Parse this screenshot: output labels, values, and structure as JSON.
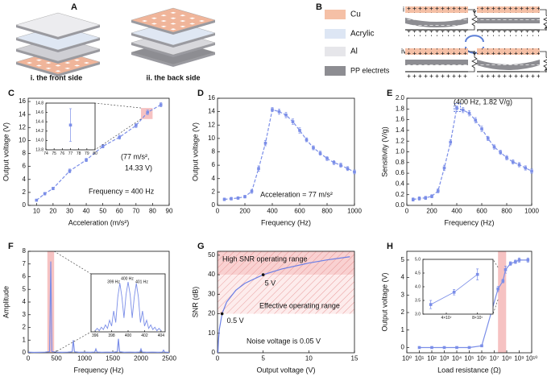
{
  "figure": {
    "panel_a": {
      "label": "A",
      "captions": [
        "i. the front side",
        "ii. the back side"
      ]
    },
    "panel_b": {
      "label": "B",
      "legend": [
        "Cu",
        "Acrylic",
        "Al",
        "PP electrets"
      ],
      "states": [
        "i",
        "ii",
        "iii",
        "iv"
      ]
    }
  },
  "chart_data": [
    {
      "panel": "C",
      "type": "line",
      "xlabel": "Acceleration (m/s²)",
      "ylabel": "Output voltage (V)",
      "x": [
        10,
        15,
        20,
        30,
        40,
        50,
        60,
        70,
        77,
        85
      ],
      "values": [
        0.8,
        1.8,
        2.6,
        5.3,
        7.0,
        9.1,
        10.5,
        12.3,
        14.33,
        15.5
      ],
      "errors": [
        0.15,
        0.2,
        0.2,
        0.3,
        0.25,
        0.25,
        0.3,
        0.3,
        0.35,
        0.3
      ],
      "color": "#7b8ee8",
      "line_style": "dashed",
      "markers": "square",
      "xlim": [
        5,
        90
      ],
      "ylim": [
        0,
        16.5
      ],
      "xticks": [
        10,
        20,
        30,
        40,
        50,
        60,
        70,
        80,
        90
      ],
      "yticks": [
        0,
        2,
        4,
        6,
        8,
        10,
        12,
        14,
        16
      ],
      "annotations": [
        "(77 m/s²,",
        "14.33 V)",
        "Frequency = 400 Hz"
      ],
      "highlights": [
        {
          "x": [
            73,
            80
          ],
          "y": [
            13.3,
            15.0
          ],
          "color": "#f4b3b3"
        }
      ]
    },
    {
      "type": "line",
      "x": [
        77
      ],
      "values": [
        14.33
      ],
      "errors": [
        0.35
      ],
      "color": "#7b8ee8",
      "line_style": "dashed",
      "markers": "square",
      "xlim": [
        74,
        80
      ],
      "ylim": [
        13.8,
        14.8
      ],
      "xticks": [
        74,
        75,
        76,
        77,
        78,
        79,
        80
      ],
      "yticks": [
        13.8,
        {
          "value": 14,
          "label": "14.0"
        },
        14.2,
        14.4,
        14.6,
        14.8
      ]
    },
    {
      "panel": "D",
      "type": "line",
      "xlabel": "Frequency (Hz)",
      "ylabel": "Output voltage (V)",
      "x": [
        50,
        100,
        150,
        200,
        250,
        300,
        350,
        400,
        450,
        500,
        550,
        600,
        650,
        700,
        750,
        800,
        850,
        900,
        950,
        1000
      ],
      "values": [
        0.9,
        1.0,
        1.1,
        1.3,
        2.1,
        5.5,
        9.3,
        14.3,
        14.0,
        13.5,
        12.5,
        11.2,
        9.8,
        8.6,
        7.8,
        7.0,
        6.4,
        6.0,
        5.5,
        5.0
      ],
      "errors": [
        0.2,
        0.2,
        0.2,
        0.2,
        0.3,
        0.4,
        0.4,
        0.3,
        0.4,
        0.4,
        0.4,
        0.4,
        0.3,
        0.3,
        0.3,
        0.3,
        0.3,
        0.3,
        0.3,
        0.3
      ],
      "color": "#7b8ee8",
      "line_style": "dashed",
      "markers": "square",
      "xlim": [
        0,
        1000
      ],
      "ylim": [
        0,
        16
      ],
      "xticks": [
        0,
        200,
        400,
        600,
        800,
        1000
      ],
      "yticks": [
        0,
        2,
        4,
        6,
        8,
        10,
        12,
        14,
        16
      ],
      "annotations": [
        "Acceleration = 77 m/s²"
      ]
    },
    {
      "panel": "E",
      "type": "line",
      "xlabel": "Frequency (Hz)",
      "ylabel": "Sensitivity (V/g)",
      "x": [
        50,
        100,
        150,
        200,
        250,
        300,
        350,
        400,
        450,
        500,
        550,
        600,
        650,
        700,
        750,
        800,
        850,
        900,
        950,
        1000
      ],
      "values": [
        0.11,
        0.13,
        0.14,
        0.17,
        0.27,
        0.7,
        1.18,
        1.82,
        1.78,
        1.72,
        1.59,
        1.43,
        1.25,
        1.09,
        0.99,
        0.89,
        0.81,
        0.76,
        0.7,
        0.64
      ],
      "errors": [
        0.03,
        0.03,
        0.03,
        0.03,
        0.04,
        0.05,
        0.05,
        0.04,
        0.05,
        0.05,
        0.05,
        0.05,
        0.04,
        0.04,
        0.04,
        0.04,
        0.04,
        0.04,
        0.04,
        0.04
      ],
      "color": "#7b8ee8",
      "line_style": "dashed",
      "markers": "square",
      "xlim": [
        0,
        1000
      ],
      "ylim": [
        0,
        2.0
      ],
      "xticks": [
        0,
        200,
        400,
        600,
        800,
        1000
      ],
      "yticks": [
        {
          "value": 0,
          "label": "0.0"
        },
        0.2,
        0.4,
        0.6,
        0.8,
        {
          "value": 1,
          "label": "1.0"
        },
        1.2,
        1.4,
        1.6,
        1.8,
        {
          "value": 2,
          "label": "2.0"
        }
      ],
      "annotations": [
        "(400 Hz, 1.82 V/g)"
      ],
      "highlights": [
        {
          "x": [
            380,
            430
          ],
          "y": [
            1.75,
            1.9
          ],
          "color": "#2b4fd0",
          "style": "dashed"
        }
      ]
    },
    {
      "panel": "F",
      "type": "line",
      "xlabel": "Frequency (Hz)",
      "ylabel": "Amplitude",
      "x": [
        0,
        100,
        200,
        300,
        380,
        400,
        420,
        500,
        600,
        700,
        780,
        800,
        820,
        900,
        1000,
        1100,
        1180,
        1200,
        1220,
        1300,
        1400,
        1500,
        1580,
        1600,
        1620,
        1700,
        1800,
        1900,
        1980,
        2000,
        2020,
        2100,
        2200,
        2300,
        2380,
        2400,
        2420,
        2500
      ],
      "values": [
        0.05,
        0.03,
        0.04,
        0.05,
        0.1,
        7.2,
        0.1,
        0.05,
        0.04,
        0.05,
        0.08,
        1.0,
        0.08,
        0.04,
        0.05,
        0.04,
        0.06,
        0.3,
        0.06,
        0.04,
        0.05,
        0.04,
        0.08,
        1.1,
        0.08,
        0.04,
        0.05,
        0.04,
        0.06,
        0.3,
        0.06,
        0.04,
        0.05,
        0.04,
        0.05,
        0.2,
        0.05,
        0.04
      ],
      "color": "#7b8ee8",
      "line_style": "solid",
      "xlim": [
        0,
        2500
      ],
      "ylim": [
        0,
        8
      ],
      "xticks": [
        0,
        500,
        1000,
        1500,
        2000,
        2500
      ],
      "yticks": [
        0,
        1,
        2,
        3,
        4,
        5,
        6,
        7,
        8
      ],
      "highlights": [
        {
          "x": [
            340,
            460
          ],
          "color": "#f4b3b3"
        }
      ]
    },
    {
      "type": "line",
      "x": [
        396,
        396.25,
        396.5,
        396.75,
        397,
        397.25,
        397.5,
        397.75,
        398,
        398.25,
        398.5,
        398.75,
        399,
        399.25,
        399.5,
        399.75,
        400,
        400.25,
        400.5,
        400.75,
        401,
        401.25,
        401.5,
        401.75,
        402,
        402.25,
        402.5,
        402.75,
        403,
        403.25,
        403.5,
        403.75,
        404
      ],
      "values": [
        0.1,
        0.3,
        0.1,
        0.4,
        0.2,
        0.6,
        0.3,
        1.0,
        0.5,
        1.8,
        0.8,
        3.0,
        4.2,
        3.0,
        1.2,
        3.2,
        4.3,
        3.2,
        1.2,
        3.0,
        4.2,
        3.0,
        0.8,
        1.8,
        0.5,
        1.0,
        0.3,
        0.6,
        0.2,
        0.4,
        0.1,
        0.3,
        0.1
      ],
      "color": "#7b8ee8",
      "line_style": "solid",
      "xlim": [
        395.5,
        404.5
      ],
      "ylim": [
        0,
        5
      ],
      "xticks": [
        396,
        398,
        400,
        402,
        404
      ],
      "annotations": [
        "399 Hz",
        "400 Hz",
        "401 Hz"
      ]
    },
    {
      "panel": "G",
      "type": "line",
      "xlabel": "Output voltage (V)",
      "ylabel": "SNR (dB)",
      "x": [
        0.05,
        0.1,
        0.2,
        0.5,
        1,
        2,
        3,
        5,
        7,
        10,
        12,
        14.5
      ],
      "values": [
        0,
        6,
        12,
        20,
        26,
        32,
        35.6,
        40,
        42.9,
        46,
        47.6,
        49.2
      ],
      "color": "#6b7fe6",
      "line_style": "solid",
      "xlim": [
        0,
        15
      ],
      "ylim": [
        0,
        52
      ],
      "xticks": [
        0,
        5,
        10,
        15
      ],
      "yticks": [
        0,
        10,
        20,
        30,
        40,
        50
      ],
      "highlights": [
        {
          "y": [
            40,
            52
          ],
          "color": "#f7c6c6",
          "hatch": true
        },
        {
          "y": [
            20,
            40
          ],
          "color": "#fde7e7",
          "hatch": true
        }
      ],
      "points": [
        {
          "x": 0.5,
          "y": 20,
          "label": "0.5 V"
        },
        {
          "x": 5,
          "y": 40,
          "label": "5 V"
        }
      ],
      "annotations": [
        "High SNR operating range",
        "Effective operating range",
        "Noise voltage is 0.05 V"
      ]
    },
    {
      "panel": "H",
      "type": "line",
      "xlabel": "Load resistance (Ω)",
      "ylabel": "Output voltage (V)",
      "xscale": "log",
      "x": [
        10,
        100,
        1000,
        10000,
        100000,
        1000000,
        20000000.0,
        50000000.0,
        80000000.0,
        200000000.0,
        500000000.0,
        1000000000.0,
        5000000000.0
      ],
      "values": [
        0,
        0,
        0,
        0,
        0,
        0.1,
        3.35,
        3.8,
        4.45,
        4.8,
        4.9,
        5.0,
        5.0
      ],
      "errors": [
        0.05,
        0.05,
        0.05,
        0.05,
        0.05,
        0.05,
        0.15,
        0.1,
        0.2,
        0.1,
        0.1,
        0.12,
        0.12
      ],
      "color": "#7b8ee8",
      "line_style": "solid",
      "markers": "square",
      "xlim": [
        1,
        10000000000.0
      ],
      "ylim": [
        -0.3,
        5.5
      ],
      "xticks": [
        {
          "value": 1,
          "label": "10⁰"
        },
        {
          "value": 10,
          "label": "10¹"
        },
        {
          "value": 100,
          "label": "10²"
        },
        {
          "value": 1000,
          "label": "10³"
        },
        {
          "value": 10000,
          "label": "10⁴"
        },
        {
          "value": 100000,
          "label": "10⁵"
        },
        {
          "value": 1000000,
          "label": "10⁶"
        },
        {
          "value": 10000000.0,
          "label": "10⁷"
        },
        {
          "value": 100000000.0,
          "label": "10⁸"
        },
        {
          "value": 1000000000.0,
          "label": "10⁹"
        },
        {
          "value": 10000000000.0,
          "label": "10¹⁰"
        }
      ],
      "yticks": [
        0,
        1,
        2,
        3,
        4,
        5
      ],
      "highlights": [
        {
          "x": [
            20000000.0,
            90000000.0
          ],
          "color": "#f4b3b3"
        }
      ]
    },
    {
      "type": "line",
      "x": [
        20000000.0,
        50000000.0,
        80000000.0
      ],
      "values": [
        3.35,
        3.8,
        4.45
      ],
      "errors": [
        0.15,
        0.1,
        0.2
      ],
      "color": "#7b8ee8",
      "line_style": "solid",
      "markers": "square",
      "xlim": [
        10000000.0,
        100000000.0
      ],
      "ylim": [
        3.0,
        5.0
      ],
      "xticks": [
        {
          "value": 40000000.0,
          "label": "4×10⁷"
        },
        {
          "value": 80000000.0,
          "label": "8×10⁷"
        }
      ],
      "yticks": [
        {
          "value": 3,
          "label": "3.0"
        },
        3.5,
        {
          "value": 4,
          "label": "4.0"
        },
        4.5,
        {
          "value": 5,
          "label": "5.0"
        }
      ]
    }
  ]
}
